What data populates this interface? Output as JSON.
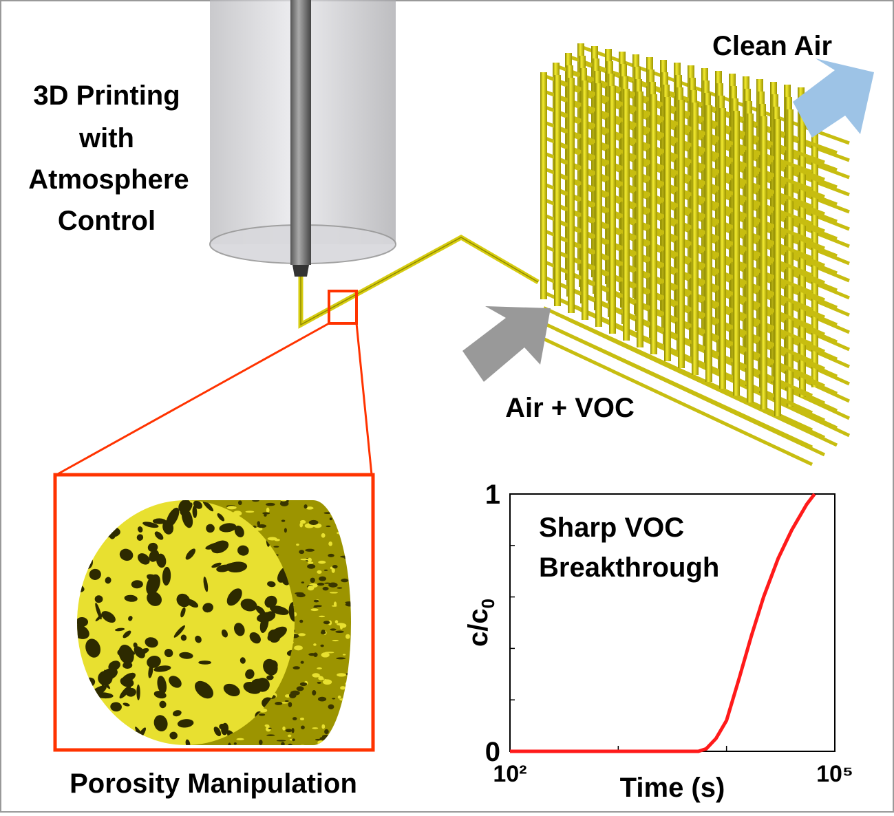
{
  "process_label": [
    "3D Printing",
    "with",
    "Atmosphere",
    "Control"
  ],
  "clean_air_label": "Clean Air",
  "inlet_label": "Air + VOC",
  "porosity_label": "Porosity Manipulation",
  "inset_chart": {
    "type": "line",
    "annotation": [
      "Sharp VOC",
      "Breakthrough"
    ],
    "xlabel": "Time (s)",
    "ylabel": {
      "text": "c/c",
      "subscript": "0"
    },
    "xscale": "log",
    "xlim": [
      100,
      100000
    ],
    "xticks": [
      {
        "value": 100,
        "label": "10²"
      },
      {
        "value": 100000,
        "label": "10⁵"
      }
    ],
    "xminor": [
      1000,
      10000
    ],
    "ylim": [
      0,
      1
    ],
    "yticks": [
      0,
      1
    ],
    "yminor": [
      0.2,
      0.4,
      0.6,
      0.8
    ],
    "series": [
      {
        "color": "#ff1a1a",
        "x": [
          100,
          1000,
          5500,
          6500,
          8000,
          10000,
          13000,
          17000,
          22000,
          30000,
          40000,
          55000,
          65000
        ],
        "values": [
          0,
          0,
          0,
          0.01,
          0.05,
          0.12,
          0.28,
          0.45,
          0.6,
          0.75,
          0.86,
          0.96,
          1.0
        ]
      }
    ]
  }
}
